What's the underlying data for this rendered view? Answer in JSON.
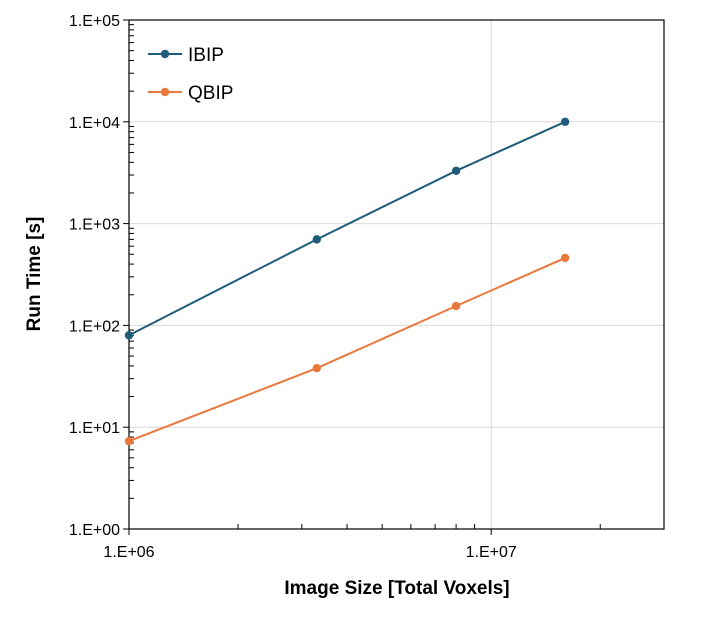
{
  "chart_data": {
    "type": "line",
    "title": "",
    "xlabel": "Image Size [Total Voxels]",
    "ylabel": "Run Time [s]",
    "x_scale": "log",
    "y_scale": "log",
    "xlim": [
      1000000,
      30000000
    ],
    "ylim": [
      1,
      100000
    ],
    "x_ticks": [
      {
        "value": 1000000,
        "label": "1.E+06"
      },
      {
        "value": 10000000,
        "label": "1.E+07"
      }
    ],
    "y_ticks": [
      {
        "value": 1,
        "label": "1.E+00"
      },
      {
        "value": 10,
        "label": "1.E+01"
      },
      {
        "value": 100,
        "label": "1.E+02"
      },
      {
        "value": 1000,
        "label": "1.E+03"
      },
      {
        "value": 10000,
        "label": "1.E+04"
      },
      {
        "value": 100000,
        "label": "1.E+05"
      }
    ],
    "x_minor_ticks": [
      2000000,
      3000000,
      4000000,
      5000000,
      6000000,
      7000000,
      8000000,
      9000000,
      20000000,
      30000000
    ],
    "y_minor_ticks": [
      2,
      3,
      4,
      5,
      6,
      7,
      8,
      9,
      20,
      30,
      40,
      50,
      60,
      70,
      80,
      90,
      200,
      300,
      400,
      500,
      600,
      700,
      800,
      900,
      2000,
      3000,
      4000,
      5000,
      6000,
      7000,
      8000,
      9000,
      20000,
      30000,
      40000,
      50000,
      60000,
      70000,
      80000,
      90000
    ],
    "grid": true,
    "legend_position": "top-left",
    "series": [
      {
        "name": "IBIP",
        "color": "#1f5c7a",
        "x": [
          1000000,
          3300000,
          8000000,
          16000000
        ],
        "y": [
          80,
          700,
          3300,
          10000
        ]
      },
      {
        "name": "QBIP",
        "color": "#e8783c",
        "x": [
          1000000,
          3300000,
          8000000,
          16000000
        ],
        "y": [
          7.3,
          38,
          155,
          460
        ]
      }
    ]
  }
}
